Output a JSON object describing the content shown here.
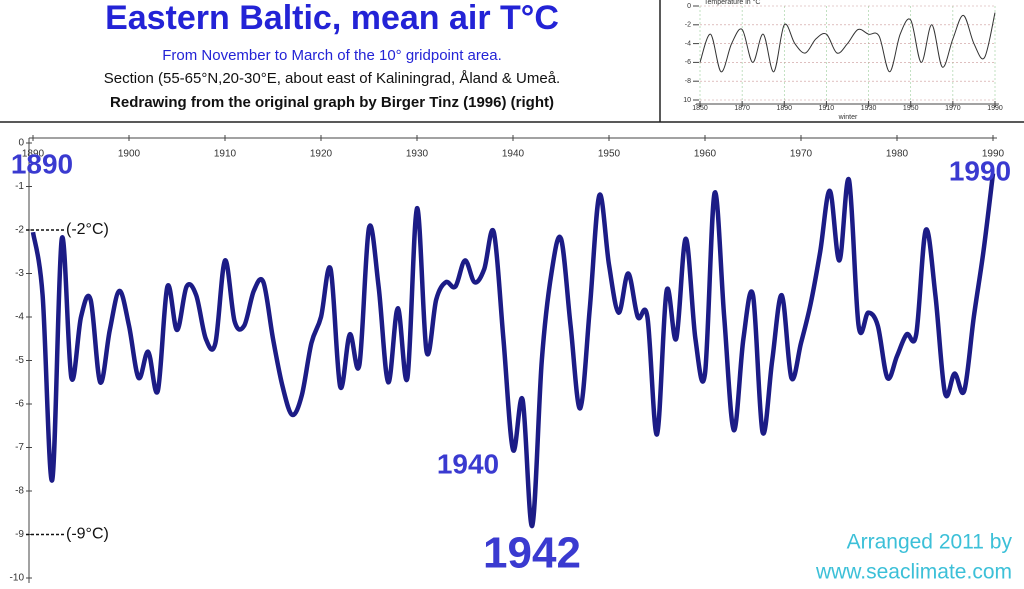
{
  "chart_data": [
    {
      "type": "line",
      "title": "Eastern Baltic, mean air T°C",
      "subtitle": "From November to March of the 10° gridpoint area.",
      "section_note": "Section (55-65°N,20-30°E, about east of Kaliningrad, Åland & Umeå.",
      "source_note": "Redrawing from the original graph by Birger Tinz (1996) (right)",
      "credit": [
        "Arranged 2011 by",
        "www.seaclimate.com"
      ],
      "annotations": [
        {
          "text": "1890"
        },
        {
          "text": "1990"
        },
        {
          "text": "1940"
        },
        {
          "text": "1942"
        },
        {
          "text": "(-2°C)",
          "value": -2
        },
        {
          "text": "(-9°C)",
          "value": -9
        }
      ],
      "xlim": [
        1890,
        1990
      ],
      "xticks": [
        1890,
        1900,
        1910,
        1920,
        1930,
        1940,
        1950,
        1960,
        1970,
        1980,
        1990
      ],
      "ylim": [
        -10,
        0
      ],
      "yticks": [
        0,
        -1,
        -2,
        -3,
        -4,
        -5,
        -6,
        -7,
        -8,
        -9,
        -10
      ],
      "x": [
        1890,
        1891,
        1892,
        1893,
        1894,
        1895,
        1896,
        1897,
        1898,
        1899,
        1900,
        1901,
        1902,
        1903,
        1904,
        1905,
        1906,
        1907,
        1908,
        1909,
        1910,
        1911,
        1912,
        1913,
        1914,
        1915,
        1916,
        1917,
        1918,
        1919,
        1920,
        1921,
        1922,
        1923,
        1924,
        1925,
        1926,
        1927,
        1928,
        1929,
        1930,
        1931,
        1932,
        1933,
        1934,
        1935,
        1936,
        1937,
        1938,
        1939,
        1940,
        1941,
        1942,
        1943,
        1944,
        1945,
        1946,
        1947,
        1948,
        1949,
        1950,
        1951,
        1952,
        1953,
        1954,
        1955,
        1956,
        1957,
        1958,
        1959,
        1960,
        1961,
        1962,
        1963,
        1964,
        1965,
        1966,
        1967,
        1968,
        1969,
        1970,
        1971,
        1972,
        1973,
        1974,
        1975,
        1976,
        1977,
        1978,
        1979,
        1980,
        1981,
        1982,
        1983,
        1984,
        1985,
        1986,
        1987,
        1988,
        1989,
        1990
      ],
      "series": [
        {
          "color": "#1c1c86",
          "values": [
            -2.05,
            -3.5,
            -7.75,
            -2.2,
            -5.4,
            -4.0,
            -3.6,
            -5.5,
            -4.3,
            -3.4,
            -4.2,
            -5.4,
            -4.8,
            -5.7,
            -3.3,
            -4.3,
            -3.3,
            -3.5,
            -4.5,
            -4.6,
            -2.7,
            -4.1,
            -4.2,
            -3.4,
            -3.2,
            -4.5,
            -5.6,
            -6.25,
            -5.8,
            -4.6,
            -4.0,
            -2.9,
            -5.6,
            -4.4,
            -5.1,
            -1.95,
            -3.3,
            -5.5,
            -3.8,
            -5.4,
            -1.5,
            -4.8,
            -3.6,
            -3.2,
            -3.3,
            -2.7,
            -3.2,
            -2.9,
            -2.05,
            -4.5,
            -7.05,
            -5.9,
            -8.8,
            -5.0,
            -3.0,
            -2.2,
            -4.2,
            -6.1,
            -3.8,
            -1.2,
            -2.8,
            -3.9,
            -3.0,
            -4.0,
            -4.0,
            -6.7,
            -3.4,
            -4.5,
            -2.2,
            -4.5,
            -5.3,
            -1.15,
            -4.0,
            -6.6,
            -4.5,
            -3.5,
            -6.65,
            -5.0,
            -3.5,
            -5.4,
            -4.6,
            -3.7,
            -2.5,
            -1.1,
            -2.7,
            -0.85,
            -4.2,
            -3.9,
            -4.2,
            -5.4,
            -4.9,
            -4.4,
            -4.4,
            -2.0,
            -3.5,
            -5.75,
            -5.3,
            -5.7,
            -4.0,
            -2.5,
            -0.7
          ]
        }
      ]
    },
    {
      "type": "line",
      "title": "Temperature in °C",
      "x_label": "winter",
      "xlim": [
        1850,
        1990
      ],
      "xticks": [
        1850,
        1870,
        1890,
        1910,
        1930,
        1950,
        1970,
        1990
      ],
      "ylim": [
        -10,
        0
      ],
      "yticks": [
        0,
        -2,
        -4,
        -6,
        -8,
        {
          "value": -10,
          "label": "10"
        }
      ],
      "x": [
        1850,
        1855,
        1860,
        1865,
        1870,
        1875,
        1880,
        1885,
        1890,
        1895,
        1900,
        1905,
        1910,
        1915,
        1920,
        1925,
        1930,
        1935,
        1940,
        1945,
        1950,
        1955,
        1960,
        1965,
        1970,
        1975,
        1980,
        1985,
        1990
      ],
      "series": [
        {
          "color": "#333333",
          "values": [
            -6,
            -3,
            -7,
            -4,
            -2.5,
            -6,
            -3,
            -7,
            -2,
            -4,
            -5,
            -3.5,
            -3,
            -5,
            -4,
            -2.5,
            -3,
            -3.2,
            -7,
            -3,
            -1.5,
            -6,
            -2,
            -6.5,
            -3.5,
            -1,
            -4,
            -5.5,
            -0.7
          ]
        }
      ]
    }
  ]
}
